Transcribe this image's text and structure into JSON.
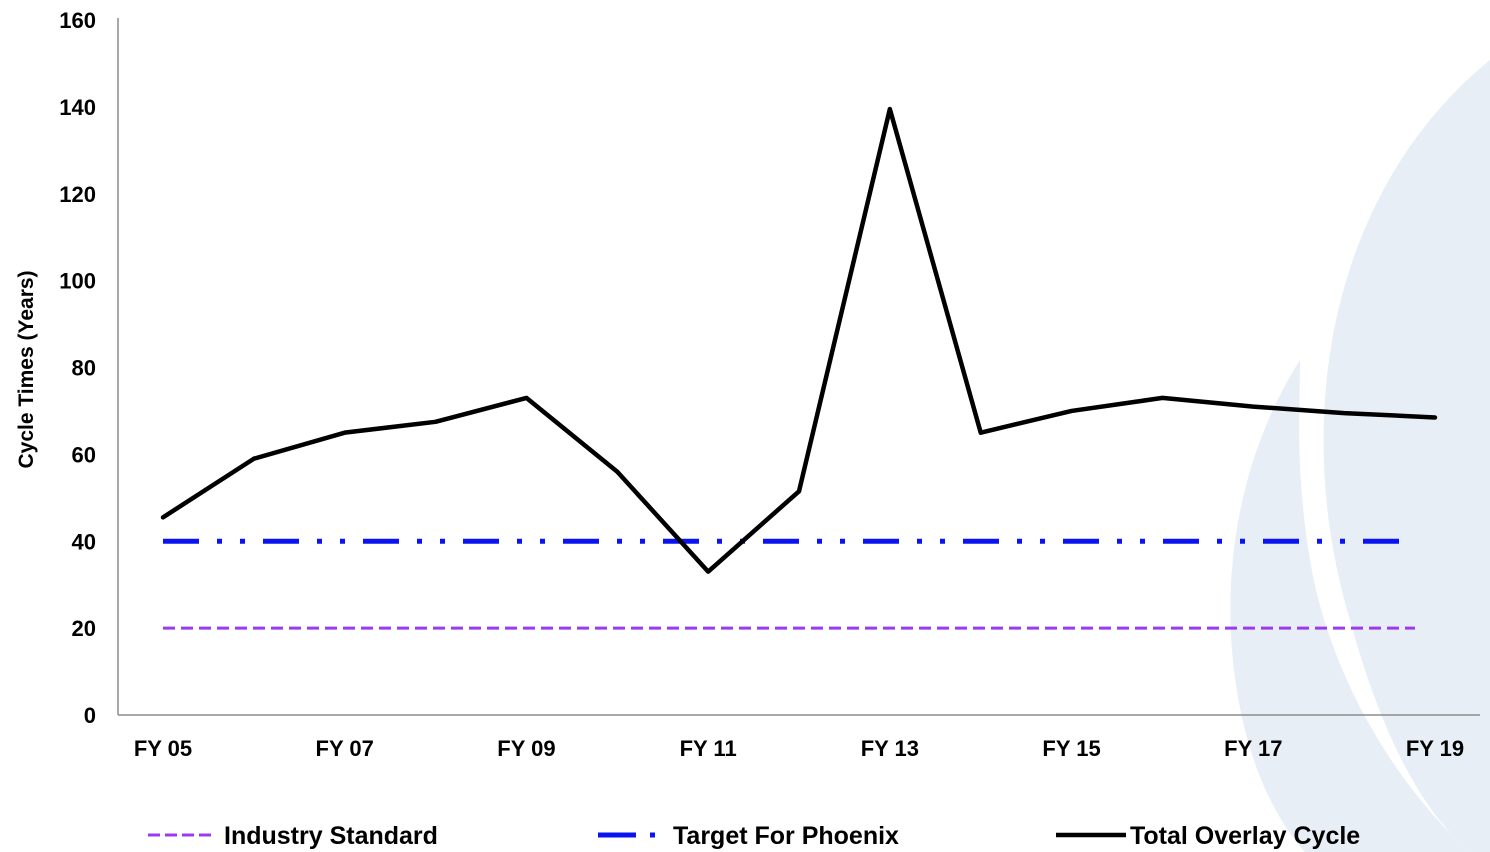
{
  "colors": {
    "background": "#ffffff",
    "watermark": "#e8eef5",
    "axis": "#8c8c8c",
    "text": "#000000"
  },
  "chart_data": {
    "type": "line",
    "title": "",
    "xlabel": "",
    "ylabel": "Cycle Times (Years)",
    "ylim": [
      0,
      160
    ],
    "yticks": [
      0,
      20,
      40,
      60,
      80,
      100,
      120,
      140,
      160
    ],
    "x": [
      "FY 05",
      "FY 06",
      "FY 07",
      "FY 08",
      "FY 09",
      "FY 10",
      "FY 11",
      "FY 12",
      "FY 13",
      "FY 14",
      "FY 15",
      "FY 16",
      "FY 17",
      "FY 18",
      "FY 19"
    ],
    "xtick_labels": [
      "FY 05",
      "",
      "FY 07",
      "",
      "FY 09",
      "",
      "FY 11",
      "",
      "FY 13",
      "",
      "FY 15",
      "",
      "FY 17",
      "",
      "FY 19"
    ],
    "grid": false,
    "legend_position": "bottom",
    "series": [
      {
        "name": "Industry Standard",
        "color": "#9b3bf0",
        "style": "dashed",
        "values": [
          20,
          20,
          20,
          20,
          20,
          20,
          20,
          20,
          20,
          20,
          20,
          20,
          20,
          20,
          20
        ]
      },
      {
        "name": "Target For Phoenix",
        "color": "#0a14f0",
        "style": "long-dash-dot-dot",
        "values": [
          40,
          40,
          40,
          40,
          40,
          40,
          40,
          40,
          40,
          40,
          40,
          40,
          40,
          40,
          40
        ]
      },
      {
        "name": "Total Overlay Cycle",
        "color": "#000000",
        "style": "solid",
        "values": [
          45.5,
          59,
          65,
          67.5,
          73,
          56,
          33,
          51.5,
          139.5,
          65,
          70,
          73,
          71,
          69.5,
          68.5
        ]
      }
    ]
  }
}
